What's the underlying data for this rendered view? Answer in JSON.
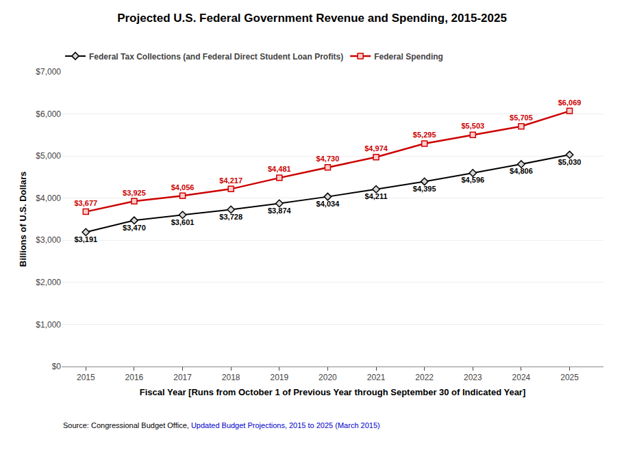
{
  "chart_data": {
    "type": "line",
    "title": "Projected U.S. Federal Government Revenue and Spending, 2015-2025",
    "x_label": "Fiscal Year [Runs from October 1 of Previous Year through September 30 of Indicated Year]",
    "y_label": "Billions of U.S. Dollars",
    "annotations": [
      {
        "text": "Source: Congressional Budget Office, ",
        "color": "#000000"
      },
      {
        "text": "Updated Budget Projections, 2015 to 2025 (March 2015)",
        "color": "#0000cc"
      }
    ],
    "x": [
      2015,
      2016,
      2017,
      2018,
      2019,
      2020,
      2021,
      2022,
      2023,
      2024,
      2025
    ],
    "series": [
      {
        "name": "Federal Tax Collections (and Federal Direct Student Loan Profits)",
        "color": "#000000",
        "marker": "diamond",
        "line_style": "solid",
        "values": [
          3191,
          3470,
          3601,
          3728,
          3874,
          4034,
          4211,
          4395,
          4596,
          4806,
          5030
        ],
        "value_labels": [
          "$3,191",
          "$3,470",
          "$3,601",
          "$3,728",
          "$3,874",
          "$4,034",
          "$4,211",
          "$4,395",
          "$4,596",
          "$4,806",
          "$5,030"
        ]
      },
      {
        "name": "Federal Spending",
        "color": "#cc0000",
        "marker": "square",
        "line_style": "solid",
        "values": [
          3677,
          3925,
          4056,
          4217,
          4481,
          4730,
          4974,
          5295,
          5503,
          5705,
          6069
        ],
        "value_labels": [
          "$3,677",
          "$3,925",
          "$4,056",
          "$4,217",
          "$4,481",
          "$4,730",
          "$4,974",
          "$5,295",
          "$5,503",
          "$5,705",
          "$6,069"
        ]
      }
    ],
    "xlim": [
      2014.5,
      2025.7
    ],
    "xticks": [
      2015,
      2016,
      2017,
      2018,
      2019,
      2020,
      2021,
      2022,
      2023,
      2024,
      2025
    ],
    "ylim": [
      0,
      7000
    ],
    "yticks": [
      {
        "value": 0,
        "label": "$0"
      },
      {
        "value": 1000,
        "label": "$1,000"
      },
      {
        "value": 2000,
        "label": "$2,000"
      },
      {
        "value": 3000,
        "label": "$3,000"
      },
      {
        "value": 4000,
        "label": "$4,000"
      },
      {
        "value": 5000,
        "label": "$5,000"
      },
      {
        "value": 6000,
        "label": "$6,000"
      },
      {
        "value": 7000,
        "label": "$7,000"
      }
    ],
    "grid": true,
    "legend": "upper left",
    "data_labels": true
  }
}
